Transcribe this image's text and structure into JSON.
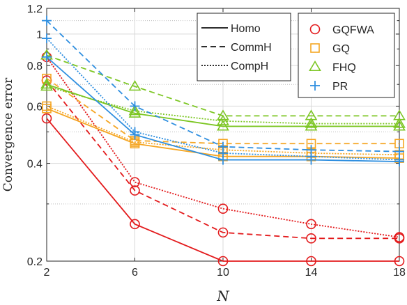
{
  "chart_data": {
    "type": "line",
    "xlabel": "N",
    "ylabel": "Convergence error",
    "yscale": "log",
    "xlim": [
      2,
      18
    ],
    "ylim": [
      0.2,
      1.2
    ],
    "x": [
      2,
      6,
      10,
      14,
      18
    ],
    "xticks": [
      "2",
      "6",
      "10",
      "14",
      "18"
    ],
    "yticks": [
      {
        "value": 0.2,
        "label": "0.2"
      },
      {
        "value": 0.4,
        "label": "0.4"
      },
      {
        "value": 0.6,
        "label": "0.6"
      },
      {
        "value": 0.8,
        "label": "0.8"
      },
      {
        "value": 1.0,
        "label": "1"
      },
      {
        "value": 1.2,
        "label": "1.2"
      }
    ],
    "grid": true,
    "legend_linestyles": {
      "placement": "top-center",
      "entries": [
        {
          "name": "Homo",
          "dash": "solid"
        },
        {
          "name": "CommH",
          "dash": "dashed"
        },
        {
          "name": "CompH",
          "dash": "dotted"
        }
      ]
    },
    "legend_methods": {
      "placement": "top-right",
      "entries": [
        {
          "name": "GQFWA",
          "color": "#e31a1c",
          "marker": "circle"
        },
        {
          "name": "GQ",
          "color": "#f5a623",
          "marker": "square"
        },
        {
          "name": "FHQ",
          "color": "#7cc623",
          "marker": "triangle"
        },
        {
          "name": "PR",
          "color": "#2f8fe0",
          "marker": "plus"
        }
      ]
    },
    "series": [
      {
        "method": "GQFWA",
        "scenario": "Homo",
        "values": [
          0.55,
          0.26,
          0.2,
          0.2,
          0.2
        ]
      },
      {
        "method": "GQFWA",
        "scenario": "CommH",
        "values": [
          0.72,
          0.33,
          0.245,
          0.235,
          0.235
        ]
      },
      {
        "method": "GQFWA",
        "scenario": "CompH",
        "values": [
          0.85,
          0.35,
          0.29,
          0.26,
          0.237
        ]
      },
      {
        "method": "GQ",
        "scenario": "Homo",
        "values": [
          0.59,
          0.46,
          0.42,
          0.42,
          0.415
        ]
      },
      {
        "method": "GQ",
        "scenario": "CommH",
        "values": [
          0.73,
          0.47,
          0.46,
          0.46,
          0.46
        ]
      },
      {
        "method": "GQ",
        "scenario": "CompH",
        "values": [
          0.6,
          0.465,
          0.44,
          0.43,
          0.425
        ]
      },
      {
        "method": "FHQ",
        "scenario": "Homo",
        "values": [
          0.7,
          0.57,
          0.52,
          0.52,
          0.52
        ]
      },
      {
        "method": "FHQ",
        "scenario": "CommH",
        "values": [
          0.86,
          0.69,
          0.56,
          0.56,
          0.56
        ]
      },
      {
        "method": "FHQ",
        "scenario": "CompH",
        "values": [
          0.69,
          0.58,
          0.54,
          0.53,
          0.53
        ]
      },
      {
        "method": "PR",
        "scenario": "Homo",
        "values": [
          0.85,
          0.49,
          0.41,
          0.41,
          0.405
        ]
      },
      {
        "method": "PR",
        "scenario": "CommH",
        "values": [
          1.1,
          0.6,
          0.45,
          0.44,
          0.435
        ]
      },
      {
        "method": "PR",
        "scenario": "CompH",
        "values": [
          0.97,
          0.5,
          0.43,
          0.42,
          0.41
        ]
      }
    ]
  }
}
